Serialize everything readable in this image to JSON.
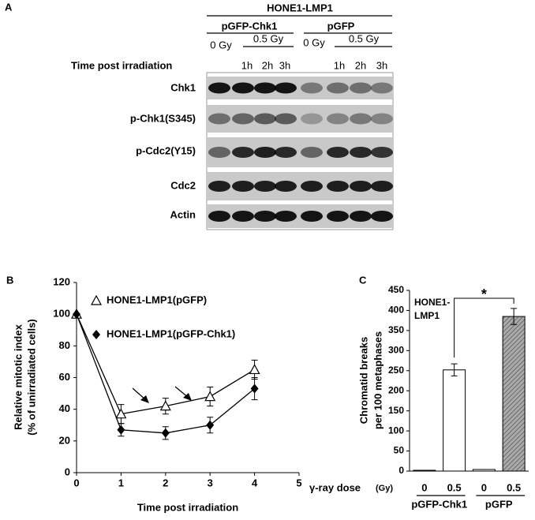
{
  "panel_a": {
    "label": "A",
    "cell_line": "HONE1-LMP1",
    "constructs": [
      {
        "name": "pGFP-Chk1",
        "control": "0 Gy",
        "dose": "0.5 Gy",
        "times": [
          "1h",
          "2h",
          "3h"
        ]
      },
      {
        "name": "pGFP",
        "control": "0 Gy",
        "dose": "0.5 Gy",
        "times": [
          "1h",
          "2h",
          "3h"
        ]
      }
    ],
    "time_label": "Time post irradiation",
    "rows": [
      "Chk1",
      "p-Chk1(S345)",
      "p-Cdc2(Y15)",
      "Cdc2",
      "Actin"
    ]
  },
  "chart_data": [
    {
      "type": "line",
      "panel_label": "B",
      "xlabel": "Time post irradiation",
      "ylabel": [
        "Relative mitotic index",
        "(% of unirradiated cells)"
      ],
      "x": [
        0,
        1,
        2,
        3,
        4
      ],
      "xlim": [
        0,
        5
      ],
      "xticks": [
        0,
        1,
        2,
        3,
        4,
        5
      ],
      "ylim": [
        0,
        120
      ],
      "yticks": [
        0,
        20,
        40,
        60,
        80,
        100,
        120
      ],
      "grid": false,
      "series": [
        {
          "name": "HONE1-LMP1(pGFP)",
          "color": "#000000",
          "marker": "open-triangle",
          "values": [
            100,
            37,
            42,
            48,
            65
          ],
          "errors": [
            0,
            6,
            5,
            6,
            6
          ]
        },
        {
          "name": "HONE1-LMP1(pGFP-Chk1)",
          "color": "#000000",
          "marker": "filled-diamond",
          "values": [
            100,
            27,
            25,
            30,
            53
          ],
          "errors": [
            0,
            4,
            4,
            5,
            7
          ]
        }
      ]
    },
    {
      "type": "bar",
      "panel_label": "C",
      "ylabel": [
        "Chromatid breaks",
        "per 100 metaphases"
      ],
      "annotation": [
        "HONE1-",
        "LMP1"
      ],
      "significance": "*",
      "x_prefix": "γ-ray dose",
      "x_unit": "(Gy)",
      "categories": [
        "0",
        "0.5",
        "0",
        "0.5"
      ],
      "groups": [
        "pGFP-Chk1",
        "pGFP"
      ],
      "values": [
        2,
        252,
        4,
        385
      ],
      "errors": [
        0,
        15,
        0,
        20
      ],
      "colors": [
        "#ffffff",
        "#ffffff",
        "#ffffff",
        "#999999"
      ],
      "hatched": [
        false,
        false,
        false,
        true
      ],
      "ylim": [
        0,
        450
      ],
      "yticks": [
        0,
        50,
        100,
        150,
        200,
        250,
        300,
        350,
        400,
        450
      ],
      "grid": false
    }
  ]
}
